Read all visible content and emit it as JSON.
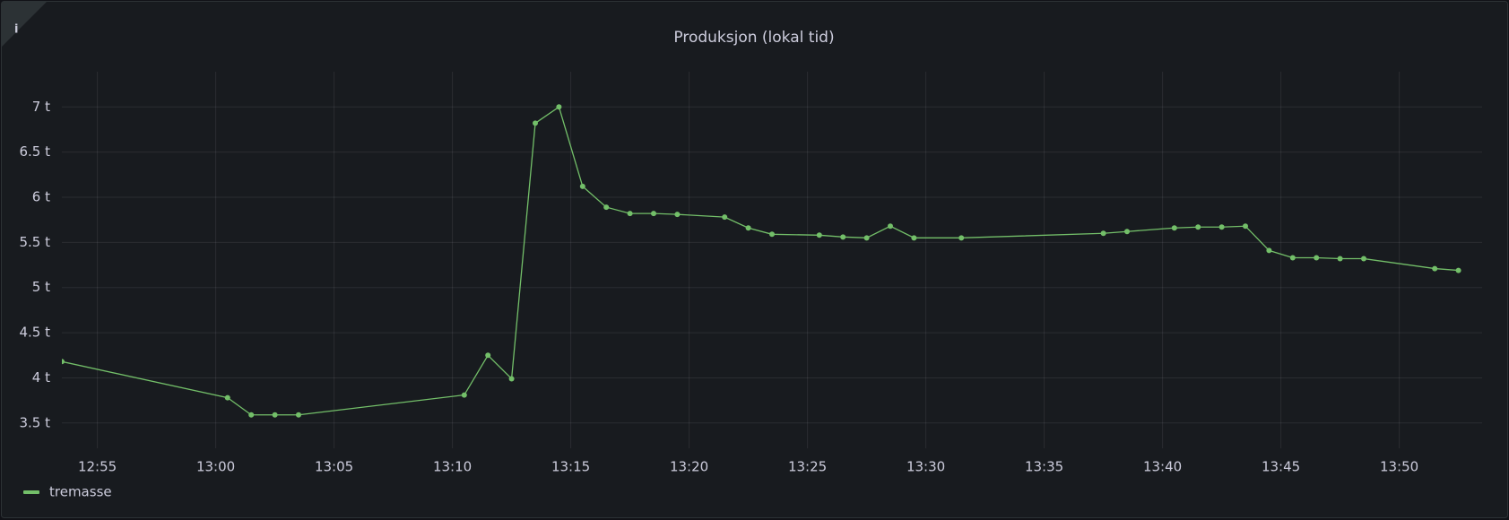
{
  "info_icon": "i",
  "chart_data": {
    "type": "line",
    "title": "Produksjon (lokal tid)",
    "x": [
      "12:53:30",
      "13:00:30",
      "13:01:30",
      "13:02:30",
      "13:03:30",
      "13:10:30",
      "13:11:30",
      "13:12:30",
      "13:13:30",
      "13:14:30",
      "13:15:30",
      "13:16:30",
      "13:17:30",
      "13:18:30",
      "13:19:30",
      "13:21:30",
      "13:22:30",
      "13:23:30",
      "13:25:30",
      "13:26:30",
      "13:27:30",
      "13:28:30",
      "13:29:30",
      "13:31:30",
      "13:37:30",
      "13:38:30",
      "13:40:30",
      "13:41:30",
      "13:42:30",
      "13:43:30",
      "13:44:30",
      "13:45:30",
      "13:46:30",
      "13:47:30",
      "13:48:30",
      "13:51:30",
      "13:52:30"
    ],
    "series": [
      {
        "name": "tremasse",
        "color": "#73bf69",
        "values": [
          4.18,
          3.78,
          3.59,
          3.59,
          3.59,
          3.81,
          4.25,
          3.99,
          6.82,
          7.0,
          6.12,
          5.89,
          5.82,
          5.82,
          5.81,
          5.78,
          5.66,
          5.59,
          5.58,
          5.56,
          5.55,
          5.68,
          5.55,
          5.55,
          5.6,
          5.62,
          5.66,
          5.67,
          5.67,
          5.68,
          5.41,
          5.33,
          5.33,
          5.32,
          5.32,
          5.21,
          5.19
        ]
      }
    ],
    "xlim": [
      "12:53:30",
      "13:53:30"
    ],
    "xticks": [
      "12:55",
      "13:00",
      "13:05",
      "13:10",
      "13:15",
      "13:20",
      "13:25",
      "13:30",
      "13:35",
      "13:40",
      "13:45",
      "13:50"
    ],
    "ylim": [
      3.22,
      7.39
    ],
    "yticks": [
      {
        "value": 3.5,
        "label": "3.5 t"
      },
      {
        "value": 4,
        "label": "4 t"
      },
      {
        "value": 4.5,
        "label": "4.5 t"
      },
      {
        "value": 5,
        "label": "5 t"
      },
      {
        "value": 5.5,
        "label": "5.5 t"
      },
      {
        "value": 6,
        "label": "6 t"
      },
      {
        "value": 6.5,
        "label": "6.5 t"
      },
      {
        "value": 7,
        "label": "7 t"
      }
    ],
    "grid": true,
    "legend": "bottom-left"
  }
}
